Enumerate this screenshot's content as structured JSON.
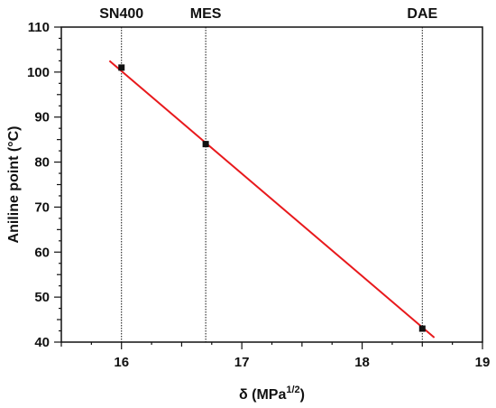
{
  "chart_data": {
    "type": "scatter",
    "title": "",
    "xlabel": {
      "base": "δ (MPa",
      "sup": "1/2",
      "end": ")"
    },
    "ylabel": "Aniline point (°C)",
    "xlim": [
      15.5,
      19
    ],
    "ylim": [
      40,
      110
    ],
    "xticks": [
      16,
      17,
      18,
      19
    ],
    "yticks": [
      40,
      50,
      60,
      70,
      80,
      90,
      100,
      110
    ],
    "points": [
      {
        "x": 16.0,
        "y": 101
      },
      {
        "x": 16.7,
        "y": 84
      },
      {
        "x": 18.5,
        "y": 43
      }
    ],
    "fit_line": {
      "x": [
        15.9,
        18.6
      ],
      "y": [
        102.5,
        41
      ],
      "color": "#e8191c"
    },
    "reference_lines": [
      {
        "x": 16.0,
        "label": "SN400"
      },
      {
        "x": 16.7,
        "label": "MES"
      },
      {
        "x": 18.5,
        "label": "DAE"
      }
    ],
    "grid": false,
    "legend": "none",
    "colors": {
      "marker": "#111111",
      "axis": "#111111",
      "fit": "#e8191c"
    }
  }
}
